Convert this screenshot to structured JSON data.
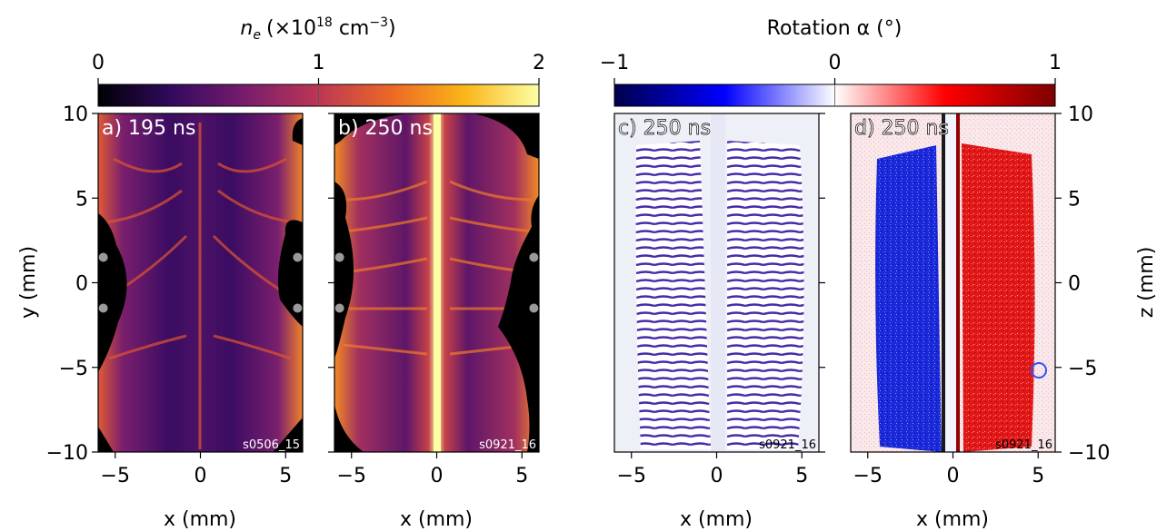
{
  "colorbars": [
    {
      "label_main": "n",
      "label_sub": "e",
      "label_units_pre": "(×10",
      "label_exp": "18",
      "label_units_post": " cm",
      "label_exp2": "−3",
      "label_close": ")",
      "ticks": [
        "0",
        "1",
        "2"
      ],
      "tick_values": [
        0,
        1,
        2
      ],
      "range": [
        0,
        2
      ],
      "colormap": "inferno",
      "stops": [
        "#000004",
        "#320a5e",
        "#781c6d",
        "#bc3754",
        "#ed6925",
        "#fbb61a",
        "#fcffa4"
      ]
    },
    {
      "label": "Rotation α (°)",
      "ticks": [
        "−1",
        "0",
        "1"
      ],
      "tick_values": [
        -1,
        0,
        1
      ],
      "range": [
        -1,
        1
      ],
      "colormap": "seismic",
      "stops": [
        "#00004c",
        "#0000ff",
        "#ffffff",
        "#ff0000",
        "#7f0000"
      ]
    }
  ],
  "panels": [
    {
      "id": "a",
      "label": "a) 195 ns",
      "shot": "s0506_15",
      "kind": "density",
      "xlabel": "x (mm)",
      "ylabel": "y (mm)"
    },
    {
      "id": "b",
      "label": "b) 250 ns",
      "shot": "s0921_16",
      "kind": "density",
      "xlabel": "x (mm)",
      "ylabel": ""
    },
    {
      "id": "c",
      "label": "c) 250 ns",
      "shot": "s0921_16",
      "kind": "interferogram",
      "xlabel": "x (mm)",
      "ylabel": ""
    },
    {
      "id": "d",
      "label": "d) 250 ns",
      "shot": "s0921_16",
      "kind": "rotation",
      "xlabel": "x (mm)",
      "ylabel": "z (mm)"
    }
  ],
  "axes": {
    "x_ticks": [
      "−5",
      "0",
      "5"
    ],
    "x_tick_values": [
      -5,
      0,
      5
    ],
    "y_ticks": [
      "10",
      "5",
      "0",
      "−5",
      "−10"
    ],
    "y_tick_values": [
      10,
      5,
      0,
      -5,
      -10
    ],
    "xlim": [
      -6,
      6
    ],
    "ylim": [
      -10,
      10
    ]
  },
  "chart_data": {
    "type": "heatmap",
    "description_panels": 4,
    "xlim": [
      -6,
      6
    ],
    "ylim": [
      -10,
      10
    ],
    "x_ticks": [
      -5,
      0,
      5
    ],
    "y_ticks": [
      -10,
      -5,
      0,
      5,
      10
    ],
    "xlabel": "x (mm)",
    "ylabel": "y (mm)",
    "ylabel_right": "z (mm)",
    "colorbar_1": {
      "label": "n_e (×10^18 cm^-3)",
      "range": [
        0,
        2
      ],
      "ticks": [
        0,
        1,
        2
      ]
    },
    "colorbar_2": {
      "label": "Rotation α (°)",
      "range": [
        -1,
        1
      ],
      "ticks": [
        -1,
        0,
        1
      ]
    },
    "markers": [
      {
        "panel": "a",
        "points": [
          [
            -5.7,
            1.5
          ],
          [
            -5.7,
            -1.5
          ],
          [
            5.7,
            1.5
          ],
          [
            5.7,
            -1.5
          ]
        ]
      },
      {
        "panel": "b",
        "points": [
          [
            -5.7,
            1.5
          ],
          [
            -5.7,
            -1.5
          ],
          [
            5.7,
            1.5
          ],
          [
            5.7,
            -1.5
          ]
        ]
      }
    ]
  }
}
